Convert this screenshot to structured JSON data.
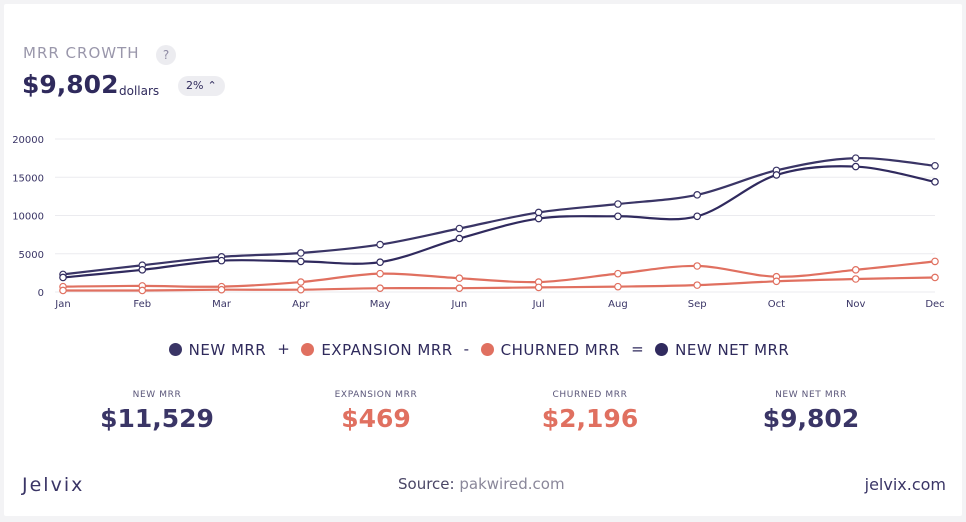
{
  "header": {
    "title": "MRR CROWTH",
    "help_icon": "?",
    "value": "$9,802",
    "unit": "dollars",
    "change": "2%",
    "change_icon": "chevron-up-icon"
  },
  "legend": {
    "items": [
      "NEW MRR",
      "EXPANSION MRR",
      "CHURNED MRR",
      "NEW NET MRR"
    ],
    "operators": [
      "+",
      "-",
      "="
    ],
    "colors": [
      "#3a3566",
      "#e07060",
      "#e07060",
      "#302a5e"
    ]
  },
  "stats": [
    {
      "label": "NEW MRR",
      "value": "$11,529",
      "color": "#3a3566"
    },
    {
      "label": "EXPANSION MRR",
      "value": "$469",
      "color": "#e07060"
    },
    {
      "label": "CHURNED MRR",
      "value": "$2,196",
      "color": "#e07060"
    },
    {
      "label": "NEW NET MRR",
      "value": "$9,802",
      "color": "#3a3566"
    }
  ],
  "footer": {
    "logo": "Jelvix",
    "source_label": "Source:",
    "source_value": "pakwired.com",
    "site": "jelvix.com"
  },
  "chart_data": {
    "type": "line",
    "title": "",
    "xlabel": "",
    "ylabel": "",
    "categories": [
      "Jan",
      "Feb",
      "Mar",
      "Apr",
      "May",
      "Jun",
      "Jul",
      "Aug",
      "Sep",
      "Oct",
      "Nov",
      "Dec"
    ],
    "ylim": [
      0,
      20000
    ],
    "yticks": [
      0,
      5000,
      10000,
      15000,
      20000
    ],
    "grid": true,
    "series": [
      {
        "values": [
          2300,
          3500,
          4600,
          5100,
          6200,
          8300,
          10400,
          11500,
          12700,
          15900,
          17500,
          16500
        ],
        "color": "#3a3566"
      },
      {
        "values": [
          1900,
          2900,
          4100,
          4000,
          3900,
          7000,
          9600,
          9900,
          9900,
          15300,
          16400,
          14400
        ],
        "color": "#302a5e"
      },
      {
        "values": [
          700,
          800,
          700,
          1300,
          2400,
          1800,
          1300,
          2400,
          3400,
          2000,
          2900,
          4000
        ],
        "color": "#e07060"
      },
      {
        "values": [
          200,
          200,
          300,
          300,
          500,
          500,
          600,
          700,
          900,
          1400,
          1700,
          1900
        ],
        "color": "#e07060"
      }
    ]
  }
}
